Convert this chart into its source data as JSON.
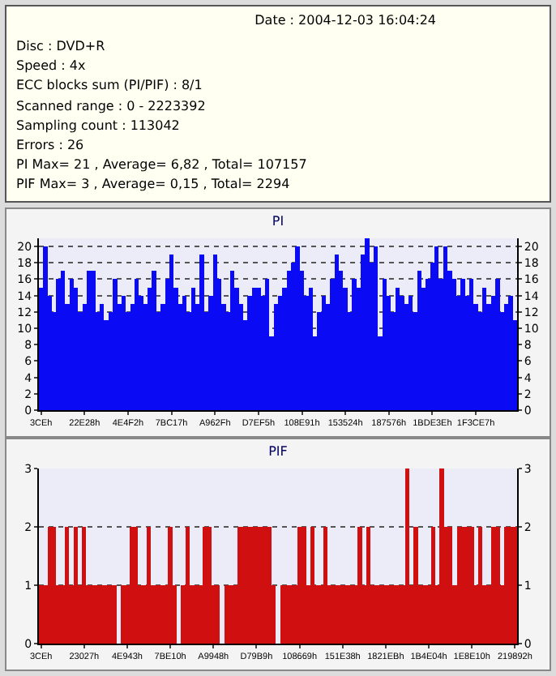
{
  "chart_data": [
    {
      "type": "other",
      "title": "Date : 2004-12-03 16:04:24",
      "annotations": [
        "Disc : DVD+R",
        "Speed : 4x",
        "ECC blocks sum (PI/PIF) : 8/1",
        "Scanned range : 0 - 2223392",
        "Sampling count : 113042",
        "Errors : 26",
        "PI Max= 21 , Average= 6,82 , Total= 107157",
        "PIF Max= 3 , Average= 0,15 , Total= 2294"
      ]
    },
    {
      "type": "bar",
      "title": "PI",
      "categories": [
        "3CEh",
        null,
        null,
        null,
        null,
        null,
        null,
        null,
        null,
        null,
        "22E28h",
        null,
        null,
        null,
        null,
        null,
        null,
        null,
        null,
        null,
        "4E4F2h",
        null,
        null,
        null,
        null,
        null,
        null,
        null,
        null,
        null,
        "7BC17h",
        null,
        null,
        null,
        null,
        null,
        null,
        null,
        null,
        null,
        "A962Fh",
        null,
        null,
        null,
        null,
        null,
        null,
        null,
        null,
        null,
        "D7EF5h",
        null,
        null,
        null,
        null,
        null,
        null,
        null,
        null,
        null,
        "108E91h",
        null,
        null,
        null,
        null,
        null,
        null,
        null,
        null,
        null,
        "153524h",
        null,
        null,
        null,
        null,
        null,
        null,
        null,
        null,
        null,
        "187576h",
        null,
        null,
        null,
        null,
        null,
        null,
        null,
        null,
        null,
        "1BDE3Eh",
        null,
        null,
        null,
        null,
        null,
        null,
        null,
        null,
        null,
        "1F3CE7h",
        null,
        null,
        null,
        null,
        null,
        null,
        null,
        null,
        null
      ],
      "values": [
        15,
        20,
        14,
        12,
        16,
        17,
        13,
        16,
        15,
        12,
        13,
        17,
        17,
        12,
        13,
        11,
        12,
        16,
        13,
        14,
        12,
        13,
        16,
        14,
        13,
        15,
        17,
        12,
        13,
        16,
        19,
        15,
        13,
        14,
        12,
        15,
        13,
        19,
        12,
        14,
        19,
        16,
        13,
        12,
        17,
        15,
        13,
        11,
        14,
        15,
        15,
        14,
        16,
        9,
        13,
        14,
        15,
        17,
        18,
        20,
        17,
        14,
        15,
        9,
        12,
        14,
        13,
        16,
        19,
        17,
        15,
        12,
        16,
        15,
        19,
        21,
        18,
        20,
        9,
        16,
        14,
        12,
        15,
        14,
        13,
        14,
        12,
        17,
        15,
        16,
        18,
        20,
        16,
        20,
        17,
        16,
        14,
        16,
        14,
        16,
        13,
        12,
        15,
        13,
        14,
        16,
        12,
        13,
        14,
        11
      ],
      "color": "#0a0af5",
      "ylim": [
        0,
        21
      ],
      "yticks": [
        0,
        2,
        4,
        6,
        8,
        10,
        12,
        14,
        16,
        18,
        20
      ],
      "y2lim": [
        0,
        21
      ],
      "y2ticks": [
        0,
        2,
        4,
        6,
        8,
        10,
        12,
        14,
        16,
        18,
        20
      ],
      "grid": "y"
    },
    {
      "type": "bar",
      "title": "PIF",
      "categories": [
        "3CEh",
        null,
        null,
        null,
        null,
        null,
        null,
        null,
        null,
        null,
        "23027h",
        null,
        null,
        null,
        null,
        null,
        null,
        null,
        null,
        null,
        "4E943h",
        null,
        null,
        null,
        null,
        null,
        null,
        null,
        null,
        null,
        "7BE10h",
        null,
        null,
        null,
        null,
        null,
        null,
        null,
        null,
        null,
        "A9948h",
        null,
        null,
        null,
        null,
        null,
        null,
        null,
        null,
        null,
        "D79B9h",
        null,
        null,
        null,
        null,
        null,
        null,
        null,
        null,
        null,
        "108669h",
        null,
        null,
        null,
        null,
        null,
        null,
        null,
        null,
        null,
        "151E38h",
        null,
        null,
        null,
        null,
        null,
        null,
        null,
        null,
        null,
        "1821EBh",
        null,
        null,
        null,
        null,
        null,
        null,
        null,
        null,
        null,
        "1B4E04h",
        null,
        null,
        null,
        null,
        null,
        null,
        null,
        null,
        null,
        "1E8E10h",
        null,
        null,
        null,
        null,
        null,
        null,
        null,
        null,
        null,
        "219892h"
      ],
      "values": [
        1,
        1,
        2,
        2,
        1,
        1,
        2,
        1,
        2,
        1,
        2,
        1,
        1,
        1,
        1,
        1,
        1,
        1,
        0,
        1,
        1,
        2,
        2,
        1,
        1,
        2,
        1,
        1,
        1,
        1,
        2,
        1,
        0,
        1,
        2,
        1,
        1,
        1,
        2,
        2,
        1,
        1,
        0,
        1,
        1,
        1,
        2,
        2,
        2,
        2,
        2,
        2,
        2,
        2,
        1,
        0,
        1,
        1,
        1,
        1,
        2,
        2,
        1,
        2,
        1,
        1,
        2,
        1,
        1,
        1,
        1,
        1,
        1,
        1,
        2,
        1,
        2,
        1,
        1,
        1,
        1,
        1,
        1,
        1,
        1,
        3,
        1,
        2,
        1,
        1,
        1,
        2,
        1,
        3,
        2,
        2,
        1,
        2,
        2,
        2,
        2,
        1,
        2,
        1,
        1,
        2,
        2,
        1,
        2,
        2,
        2
      ],
      "color": "#d01010",
      "ylim": [
        0,
        3
      ],
      "yticks": [
        0,
        1,
        2,
        3
      ],
      "y2lim": [
        0,
        3
      ],
      "y2ticks": [
        0,
        1,
        2,
        3
      ],
      "grid": "y"
    }
  ]
}
